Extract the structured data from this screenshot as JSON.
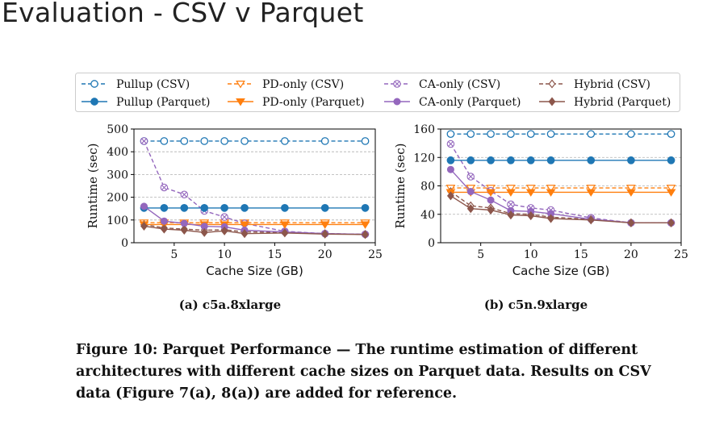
{
  "slide": {
    "title": "Evaluation - CSV v Parquet"
  },
  "legend": [
    {
      "name": "Pullup (CSV)",
      "color": "#1f77b4",
      "dashed": true,
      "marker": "o"
    },
    {
      "name": "PD-only (CSV)",
      "color": "#ff7f0e",
      "dashed": true,
      "marker": "v"
    },
    {
      "name": "CA-only (CSV)",
      "color": "#9467bd",
      "dashed": true,
      "marker": "x"
    },
    {
      "name": "Hybrid (CSV)",
      "color": "#8c564b",
      "dashed": true,
      "marker": "d"
    },
    {
      "name": "Pullup (Parquet)",
      "color": "#1f77b4",
      "dashed": false,
      "marker": "o"
    },
    {
      "name": "PD-only (Parquet)",
      "color": "#ff7f0e",
      "dashed": false,
      "marker": "v"
    },
    {
      "name": "CA-only (Parquet)",
      "color": "#9467bd",
      "dashed": false,
      "marker": "x"
    },
    {
      "name": "Hybrid (Parquet)",
      "color": "#8c564b",
      "dashed": false,
      "marker": "d"
    }
  ],
  "chart_data": [
    {
      "type": "line",
      "subcaption": "(a) c5a.8xlarge",
      "xlabel": "Cache Size (GB)",
      "ylabel": "Runtime (sec)",
      "xlim": [
        1,
        25
      ],
      "ylim": [
        0,
        500
      ],
      "xticks": [
        5,
        10,
        15,
        20,
        25
      ],
      "yticks": [
        0,
        100,
        200,
        300,
        400,
        500
      ],
      "grid": "horizontal-dashed",
      "x": [
        2,
        4,
        6,
        8,
        10,
        12,
        16,
        20,
        24
      ],
      "series": [
        {
          "name": "Pullup (CSV)",
          "values": [
            447,
            447,
            447,
            447,
            447,
            447,
            447,
            447,
            447
          ]
        },
        {
          "name": "PD-only (CSV)",
          "values": [
            88,
            88,
            88,
            88,
            88,
            88,
            88,
            88,
            88
          ]
        },
        {
          "name": "CA-only (CSV)",
          "values": [
            447,
            243,
            212,
            140,
            113,
            85,
            50,
            40,
            37
          ]
        },
        {
          "name": "Hybrid (CSV)",
          "values": [
            80,
            65,
            60,
            55,
            57,
            48,
            45,
            40,
            37
          ]
        },
        {
          "name": "Pullup (Parquet)",
          "values": [
            153,
            153,
            153,
            153,
            153,
            153,
            153,
            153,
            153
          ]
        },
        {
          "name": "PD-only (Parquet)",
          "values": [
            80,
            80,
            80,
            80,
            80,
            80,
            80,
            80,
            80
          ]
        },
        {
          "name": "CA-only (Parquet)",
          "values": [
            160,
            95,
            85,
            72,
            70,
            55,
            47,
            40,
            37
          ]
        },
        {
          "name": "Hybrid (Parquet)",
          "values": [
            73,
            60,
            55,
            45,
            52,
            40,
            43,
            38,
            36
          ]
        }
      ]
    },
    {
      "type": "line",
      "subcaption": "(b) c5n.9xlarge",
      "xlabel": "Cache Size (GB)",
      "ylabel": "Runtime (sec)",
      "xlim": [
        1,
        25
      ],
      "ylim": [
        0,
        160
      ],
      "xticks": [
        5,
        10,
        15,
        20,
        25
      ],
      "yticks": [
        0,
        40,
        80,
        120,
        160
      ],
      "grid": "horizontal-dashed",
      "x": [
        2,
        4,
        6,
        8,
        10,
        12,
        16,
        20,
        24
      ],
      "series": [
        {
          "name": "Pullup (CSV)",
          "values": [
            153,
            153,
            153,
            153,
            153,
            153,
            153,
            153,
            153
          ]
        },
        {
          "name": "PD-only (CSV)",
          "values": [
            77,
            77,
            77,
            77,
            77,
            77,
            77,
            77,
            77
          ]
        },
        {
          "name": "CA-only (CSV)",
          "values": [
            139,
            93,
            73,
            54,
            49,
            46,
            35,
            28,
            28
          ]
        },
        {
          "name": "Hybrid (CSV)",
          "values": [
            72,
            52,
            49,
            41,
            40,
            36,
            33,
            28,
            28
          ]
        },
        {
          "name": "Pullup (Parquet)",
          "values": [
            116,
            116,
            116,
            116,
            116,
            116,
            116,
            116,
            116
          ]
        },
        {
          "name": "PD-only (Parquet)",
          "values": [
            71,
            71,
            71,
            71,
            71,
            71,
            71,
            71,
            71
          ]
        },
        {
          "name": "CA-only (Parquet)",
          "values": [
            103,
            72,
            60,
            45,
            44,
            41,
            33,
            28,
            28
          ]
        },
        {
          "name": "Hybrid (Parquet)",
          "values": [
            66,
            48,
            46,
            39,
            38,
            34,
            32,
            28,
            28
          ]
        }
      ]
    }
  ],
  "caption": {
    "text": "Figure 10: Parquet Performance — The runtime estimation of different architectures with different cache sizes on Parquet data. Results on CSV data (Figure 7(a), 8(a)) are added for reference."
  }
}
